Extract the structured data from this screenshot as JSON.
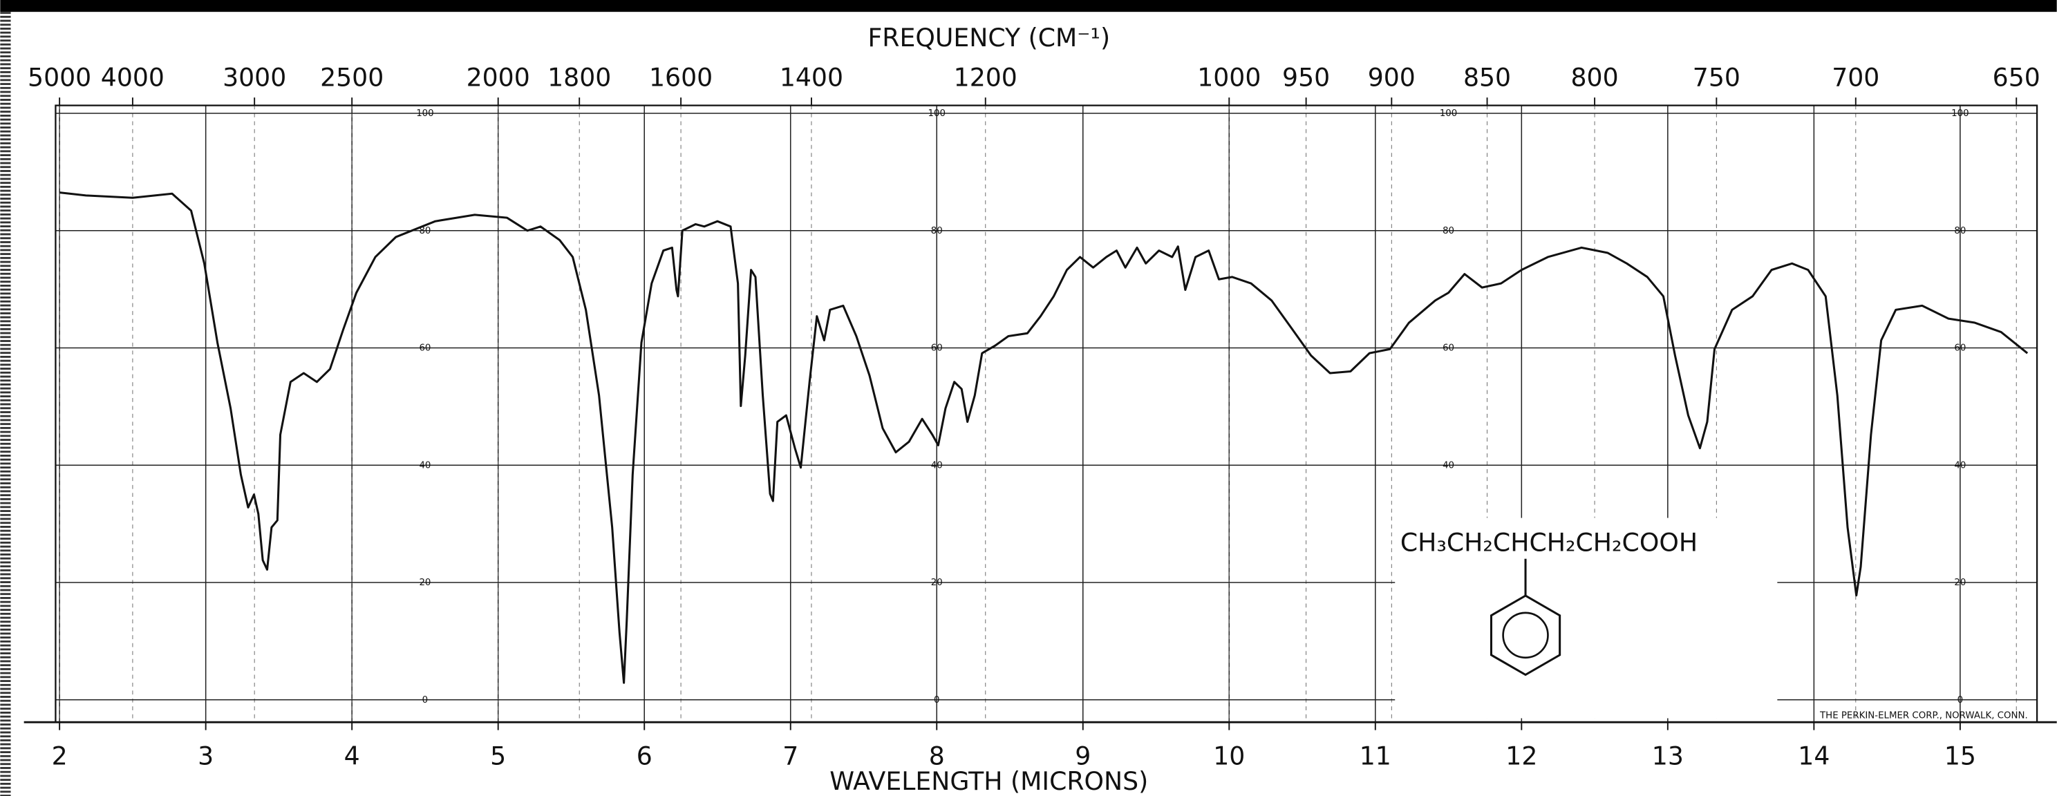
{
  "chart_data": {
    "type": "line",
    "title": "FREQUENCY (CM⁻¹)",
    "xlabel": "WAVELENGTH (MICRONS)",
    "xlim": [
      2,
      15.5
    ],
    "xticks": [
      2,
      3,
      4,
      5,
      6,
      7,
      8,
      9,
      10,
      11,
      12,
      13,
      14,
      15
    ],
    "x2ticks": [
      5000,
      4000,
      3000,
      2500,
      2000,
      1800,
      1600,
      1400,
      1200,
      1000,
      950,
      900,
      850,
      800,
      750,
      700,
      650
    ],
    "ylim": [
      0,
      100
    ],
    "yticks": [
      0,
      20,
      40,
      60,
      80,
      100
    ],
    "grid": true,
    "color": "#111111",
    "x": [
      2.0,
      2.18,
      2.5,
      2.77,
      2.9,
      2.99,
      3.08,
      3.17,
      3.24,
      3.29,
      3.33,
      3.36,
      3.39,
      3.42,
      3.45,
      3.49,
      3.51,
      3.58,
      3.67,
      3.76,
      3.85,
      3.94,
      4.03,
      4.16,
      4.3,
      4.57,
      4.84,
      5.06,
      5.2,
      5.29,
      5.42,
      5.51,
      5.6,
      5.69,
      5.78,
      5.83,
      5.86,
      5.88,
      5.92,
      5.98,
      6.05,
      6.13,
      6.19,
      6.22,
      6.23,
      6.26,
      6.35,
      6.41,
      6.5,
      6.59,
      6.64,
      6.66,
      6.69,
      6.73,
      6.76,
      6.81,
      6.86,
      6.88,
      6.91,
      6.97,
      7.03,
      7.07,
      7.13,
      7.18,
      7.23,
      7.27,
      7.36,
      7.45,
      7.54,
      7.63,
      7.72,
      7.81,
      7.9,
      7.97,
      8.01,
      8.06,
      8.12,
      8.17,
      8.21,
      8.26,
      8.31,
      8.4,
      8.49,
      8.62,
      8.71,
      8.8,
      8.89,
      8.98,
      9.07,
      9.16,
      9.23,
      9.29,
      9.37,
      9.43,
      9.52,
      9.61,
      9.65,
      9.7,
      9.77,
      9.86,
      9.93,
      10.02,
      10.15,
      10.29,
      10.42,
      10.56,
      10.69,
      10.83,
      10.96,
      11.1,
      11.23,
      11.41,
      11.5,
      11.61,
      11.73,
      11.86,
      12.0,
      12.18,
      12.41,
      12.59,
      12.72,
      12.86,
      12.97,
      13.05,
      13.14,
      13.22,
      13.27,
      13.32,
      13.44,
      13.58,
      13.71,
      13.85,
      13.96,
      14.08,
      14.16,
      14.23,
      14.29,
      14.32,
      14.39,
      14.46,
      14.56,
      14.74,
      14.92,
      15.1,
      15.28,
      15.46
    ],
    "values": [
      86.5,
      86,
      85.6,
      86.3,
      83.4,
      74.4,
      60.9,
      49.7,
      38.4,
      32.8,
      35,
      31.7,
      23.8,
      22.2,
      29.4,
      30.6,
      45.2,
      54.2,
      55.7,
      54.2,
      56.4,
      63.1,
      69.4,
      75.5,
      78.9,
      81.6,
      82.7,
      82.2,
      80,
      80.7,
      78.4,
      75.5,
      66.5,
      51.9,
      29.4,
      11.5,
      2.9,
      13.7,
      38.4,
      60.9,
      71,
      76.6,
      77.1,
      69.9,
      68.8,
      80,
      81.1,
      80.7,
      81.6,
      80.7,
      71,
      50.1,
      58.7,
      73.3,
      72.1,
      51.9,
      35.1,
      33.9,
      47.4,
      48.5,
      42.9,
      39.6,
      54.2,
      65.4,
      61.3,
      66.5,
      67.2,
      62,
      55.3,
      46.3,
      42.2,
      44,
      47.9,
      45.2,
      43.4,
      49.7,
      54.2,
      53,
      47.4,
      51.9,
      59.1,
      60.4,
      62,
      62.5,
      65.4,
      68.8,
      73.3,
      75.5,
      73.7,
      75.5,
      76.6,
      73.7,
      77.1,
      74.4,
      76.6,
      75.5,
      77.3,
      69.9,
      75.5,
      76.6,
      71.7,
      72.1,
      71,
      68.1,
      63.6,
      58.7,
      55.7,
      56,
      59.1,
      59.8,
      64.3,
      68.1,
      69.4,
      72.6,
      70.3,
      71,
      73.3,
      75.5,
      77.1,
      76.2,
      74.4,
      72.1,
      68.8,
      58.7,
      48.5,
      42.9,
      47.4,
      59.8,
      66.5,
      68.8,
      73.3,
      74.4,
      73.3,
      68.8,
      51.9,
      29.4,
      17.8,
      22.7,
      45.2,
      61.3,
      66.5,
      67.2,
      65,
      64.3,
      62.7,
      59.1
    ],
    "annotation": "CH₃CH₂CHCH₂CH₂COOH",
    "footer": "THE PERKIN-ELMER CORP., NORWALK, CONN."
  }
}
